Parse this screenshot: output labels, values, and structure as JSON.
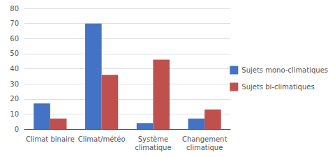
{
  "chart_data": {
    "type": "bar",
    "categories": [
      "Climat binaire",
      "Climat/météo",
      "Système\nclimatique",
      "Changement\nclimatique"
    ],
    "series": [
      {
        "name": "Sujets mono-climatiques",
        "color": "#4472C4",
        "values": [
          17,
          70,
          4,
          7
        ]
      },
      {
        "name": "Sujets bi-climatiques",
        "color": "#C0504D",
        "values": [
          7,
          36,
          46,
          13
        ]
      }
    ],
    "ylim": [
      0,
      80
    ],
    "yticks": [
      0,
      10,
      20,
      30,
      40,
      50,
      60,
      70,
      80
    ],
    "grid": true,
    "legend": "right"
  }
}
